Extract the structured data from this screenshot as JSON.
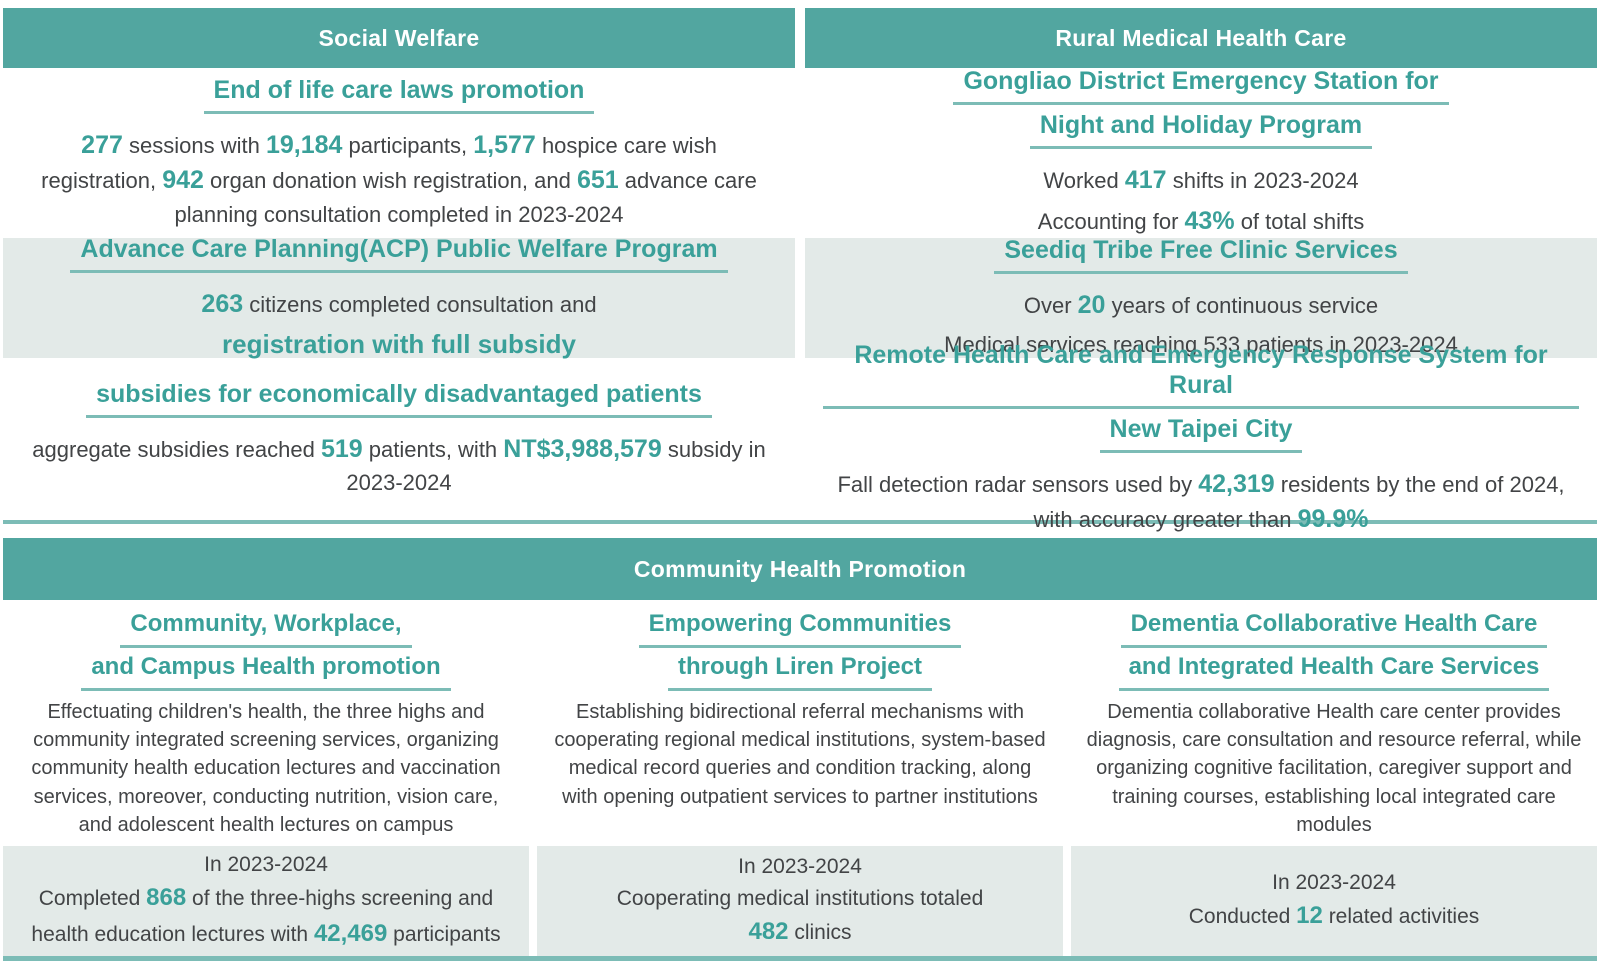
{
  "colors": {
    "header_bar_teal": "#52a6a0",
    "accent_teal_text": "#3aa099",
    "body_text_gray": "#424446",
    "shaded_row_bg": "#e3eae8",
    "underline_teal": "#7cbcb6"
  },
  "top_left": {
    "header": "Social Welfare",
    "sections": [
      {
        "title_lines": [
          "End of life care laws promotion"
        ],
        "body": [
          [
            {
              "t": "277",
              "hl": true
            },
            {
              "t": " sessions with "
            },
            {
              "t": "19,184",
              "hl": true
            },
            {
              "t": " participants, "
            },
            {
              "t": "1,577",
              "hl": true
            },
            {
              "t": " hospice care wish registration, "
            },
            {
              "t": "942",
              "hl": true
            },
            {
              "t": " organ donation wish registration, and "
            },
            {
              "t": "651",
              "hl": true
            },
            {
              "t": " advance care planning consultation completed in 2023-2024"
            }
          ]
        ]
      },
      {
        "title_lines": [
          "Advance Care Planning(ACP) Public Welfare Program"
        ],
        "body": [
          [
            {
              "t": "263",
              "hl": true
            },
            {
              "t": " citizens completed consultation and"
            }
          ],
          [
            {
              "t": "registration with full subsidy",
              "em": true
            }
          ]
        ]
      },
      {
        "title_lines": [
          "subsidies for economically disadvantaged patients"
        ],
        "body": [
          [
            {
              "t": "aggregate subsidies reached "
            },
            {
              "t": "519",
              "hl": true
            },
            {
              "t": " patients, with "
            },
            {
              "t": "NT$3,988,579",
              "hl": true
            },
            {
              "t": " subsidy in 2023-2024"
            }
          ]
        ]
      }
    ]
  },
  "top_right": {
    "header": "Rural Medical Health Care",
    "sections": [
      {
        "title_lines": [
          "Gongliao District Emergency Station for",
          "Night and Holiday Program"
        ],
        "body": [
          [
            {
              "t": "Worked "
            },
            {
              "t": "417",
              "hl": true
            },
            {
              "t": " shifts in 2023-2024"
            }
          ],
          [
            {
              "t": "Accounting for "
            },
            {
              "t": "43%",
              "hl": true
            },
            {
              "t": " of total shifts"
            }
          ]
        ]
      },
      {
        "title_lines": [
          "Seediq Tribe Free Clinic Services"
        ],
        "body": [
          [
            {
              "t": "Over "
            },
            {
              "t": "20",
              "hl": true
            },
            {
              "t": " years of continuous service"
            }
          ],
          [
            {
              "t": "Medical services reaching 533 patients in 2023-2024"
            }
          ]
        ]
      },
      {
        "title_lines": [
          "Remote Health Care and Emergency Response System for Rural",
          "New Taipei City"
        ],
        "body": [
          [
            {
              "t": "Fall detection radar sensors used by "
            },
            {
              "t": "42,319",
              "hl": true
            },
            {
              "t": " residents by the end of 2024, with accuracy greater than "
            },
            {
              "t": "99.9%",
              "hl": true
            }
          ]
        ]
      }
    ]
  },
  "bottom": {
    "header": "Community Health Promotion",
    "columns": [
      {
        "title_lines": [
          "Community, Workplace,",
          "and Campus Health promotion"
        ],
        "body": [
          [
            {
              "t": "Effectuating children's health, the three highs and community integrated screening services, organizing community health education lectures and vaccination services, moreover, conducting nutrition, vision care, and adolescent health lectures on campus"
            }
          ]
        ],
        "stat": [
          [
            {
              "t": "In 2023-2024"
            }
          ],
          [
            {
              "t": "Completed "
            },
            {
              "t": "868",
              "hl": true
            },
            {
              "t": " of the three-highs screening and health education lectures with "
            },
            {
              "t": "42,469",
              "hl": true
            },
            {
              "t": " participants"
            }
          ]
        ]
      },
      {
        "title_lines": [
          "Empowering Communities",
          "through Liren Project"
        ],
        "body": [
          [
            {
              "t": "Establishing bidirectional referral mechanisms with cooperating regional medical institutions, system-based medical record queries and condition tracking, along with opening outpatient services to partner institutions"
            }
          ]
        ],
        "stat": [
          [
            {
              "t": "In 2023-2024"
            }
          ],
          [
            {
              "t": "Cooperating medical institutions totaled"
            }
          ],
          [
            {
              "t": "482",
              "hl": true
            },
            {
              "t": " clinics"
            }
          ]
        ]
      },
      {
        "title_lines": [
          "Dementia Collaborative Health Care",
          "and Integrated Health Care Services"
        ],
        "body": [
          [
            {
              "t": "Dementia collaborative Health care center provides diagnosis, care consultation and resource referral, while organizing cognitive facilitation, caregiver support and training courses, establishing local integrated care modules"
            }
          ]
        ],
        "stat": [
          [
            {
              "t": "In 2023-2024"
            }
          ],
          [
            {
              "t": "Conducted "
            },
            {
              "t": "12",
              "hl": true
            },
            {
              "t": " related activities"
            }
          ]
        ]
      }
    ]
  }
}
